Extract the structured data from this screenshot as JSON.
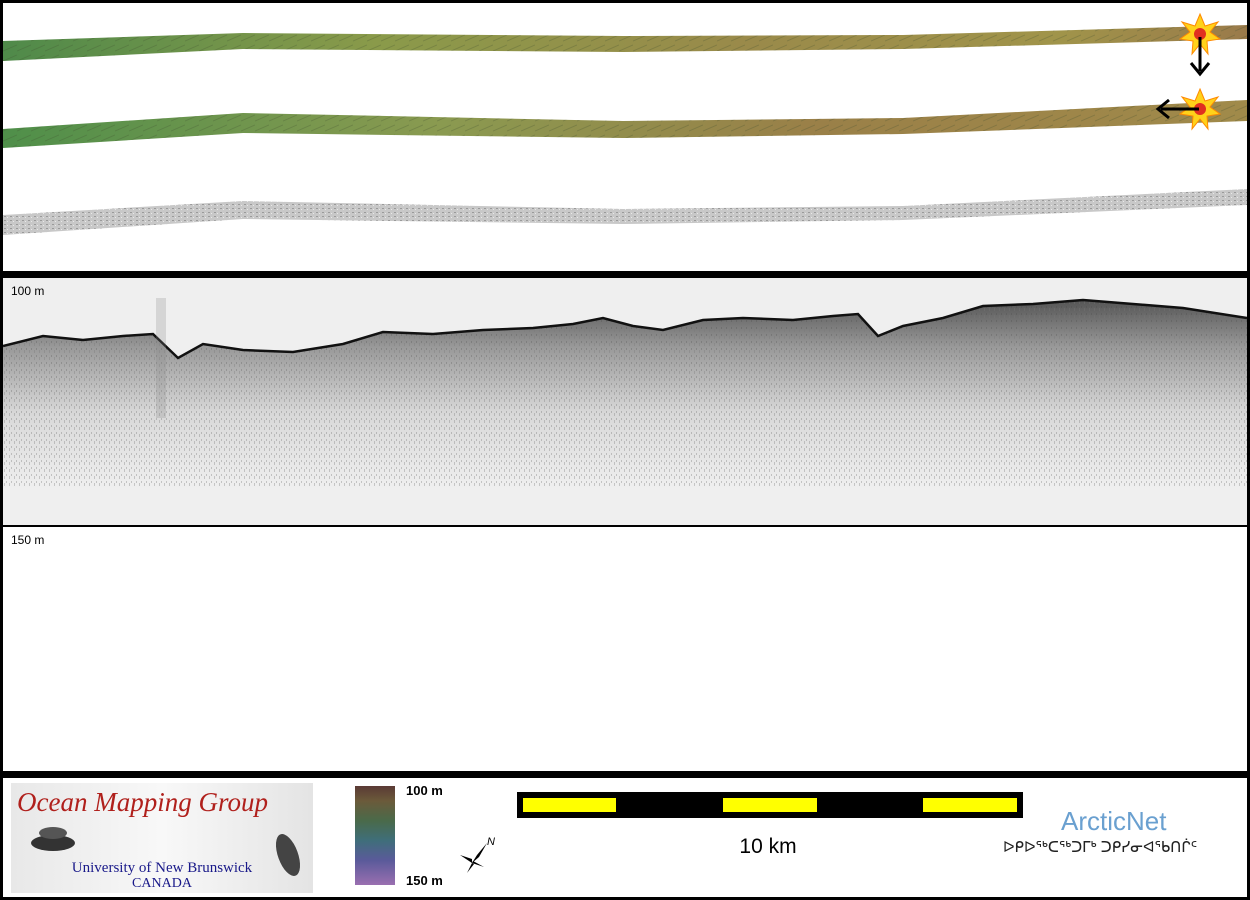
{
  "profile": {
    "top_label": "100 m"
  },
  "water_column": {
    "top_label": "150 m"
  },
  "footer": {
    "logo": {
      "title": "Ocean Mapping Group",
      "university": "University of New Brunswick",
      "country": "CANADA"
    },
    "depth_scale": {
      "top_label": "100 m",
      "bottom_label": "150 m"
    },
    "scale_bar": {
      "label": "10 km"
    },
    "north_arrow": {
      "label": "N"
    },
    "arcticnet": {
      "title": "ArcticNet",
      "subtitle": "ᐅᑭᐅᖅᑕᖅᑐᒥᒃ ᑐᑭᓯᓂᐊᖃᑎᒌᑦ"
    }
  },
  "icons": [
    "sun-marker-icon",
    "arrow-down-icon",
    "arrow-left-icon",
    "north-arrow-icon",
    "whale-icon"
  ],
  "colors": {
    "scale_yellow": "#ffff00",
    "logo_red": "#b0201c",
    "logo_blue": "#1a1a8a",
    "arcticnet_blue": "#6aa0d0"
  }
}
